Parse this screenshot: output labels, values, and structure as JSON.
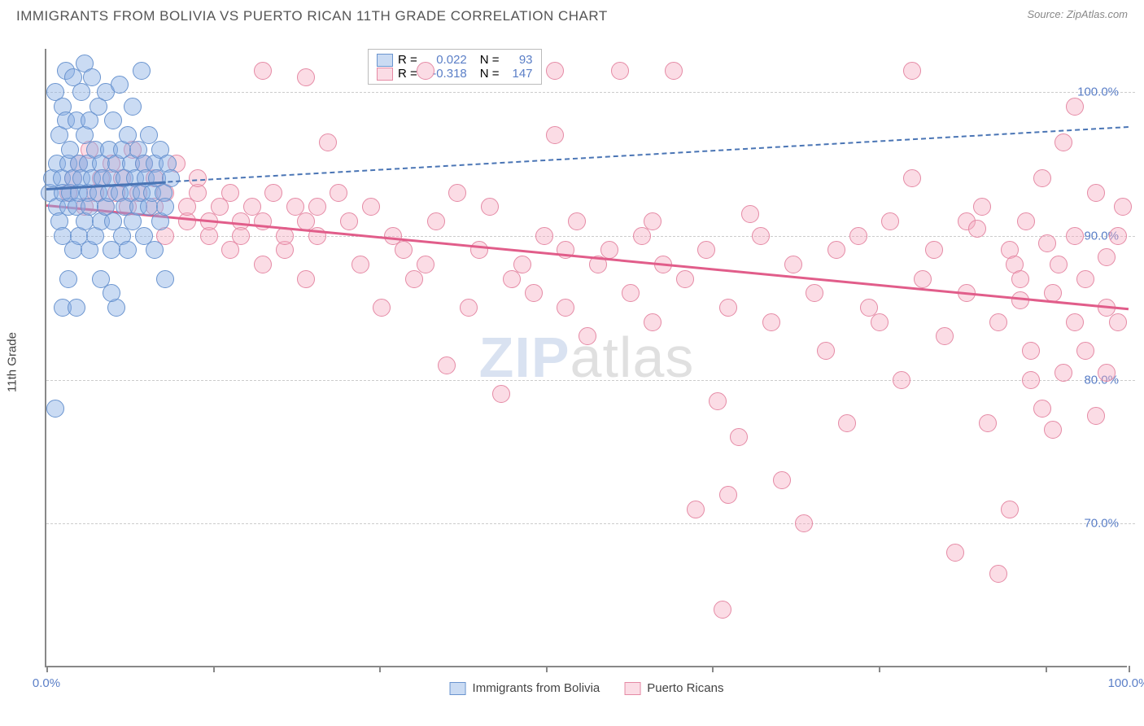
{
  "title": "IMMIGRANTS FROM BOLIVIA VS PUERTO RICAN 11TH GRADE CORRELATION CHART",
  "source": "Source: ZipAtlas.com",
  "ylabel": "11th Grade",
  "watermark_a": "ZIP",
  "watermark_b": "atlas",
  "chart": {
    "type": "scatter",
    "xlim": [
      0,
      100
    ],
    "ylim": [
      60,
      103
    ],
    "xticks": [
      0,
      15.38,
      30.77,
      46.15,
      61.54,
      76.92,
      92.31,
      100
    ],
    "xtick_labels": {
      "0": "0.0%",
      "100": "100.0%"
    },
    "yticks": [
      70,
      80,
      90,
      100
    ],
    "ytick_labels": [
      "70.0%",
      "80.0%",
      "90.0%",
      "100.0%"
    ],
    "grid_color": "#cccccc",
    "axis_color": "#888888",
    "background": "#ffffff"
  },
  "series": [
    {
      "name": "Immigrants from Bolivia",
      "legend_label": "Immigrants from Bolivia",
      "fill": "rgba(137,175,228,0.45)",
      "stroke": "#6a94cf",
      "marker_size": 22,
      "r_label": "R =",
      "r_value": "0.022",
      "n_label": "N =",
      "n_value": "93",
      "trend": {
        "x1": 0,
        "y1": 93.3,
        "x2": 100,
        "y2": 97.6,
        "solid_until_x": 11,
        "color": "#4a75b5"
      },
      "points": [
        [
          0.3,
          93
        ],
        [
          0.5,
          94
        ],
        [
          0.8,
          100
        ],
        [
          1.0,
          92
        ],
        [
          1.0,
          95
        ],
        [
          1.2,
          97
        ],
        [
          1.2,
          91
        ],
        [
          1.4,
          94
        ],
        [
          1.5,
          99
        ],
        [
          1.5,
          90
        ],
        [
          1.5,
          93
        ],
        [
          1.8,
          98
        ],
        [
          1.8,
          101.5
        ],
        [
          2.0,
          92
        ],
        [
          2.0,
          95
        ],
        [
          2.0,
          87
        ],
        [
          2.2,
          93
        ],
        [
          2.2,
          96
        ],
        [
          2.5,
          89
        ],
        [
          2.5,
          101
        ],
        [
          2.5,
          94
        ],
        [
          2.8,
          92
        ],
        [
          2.8,
          98
        ],
        [
          3.0,
          90
        ],
        [
          3.0,
          95
        ],
        [
          3.0,
          93
        ],
        [
          3.2,
          100
        ],
        [
          3.2,
          94
        ],
        [
          3.5,
          97
        ],
        [
          3.5,
          91
        ],
        [
          3.5,
          102
        ],
        [
          3.8,
          93
        ],
        [
          3.8,
          95
        ],
        [
          4.0,
          89
        ],
        [
          4.0,
          92
        ],
        [
          4.0,
          98
        ],
        [
          4.2,
          94
        ],
        [
          4.2,
          101
        ],
        [
          4.5,
          90
        ],
        [
          4.5,
          96
        ],
        [
          4.8,
          93
        ],
        [
          4.8,
          99
        ],
        [
          5.0,
          91
        ],
        [
          5.0,
          95
        ],
        [
          5.0,
          87
        ],
        [
          5.2,
          94
        ],
        [
          5.5,
          92
        ],
        [
          5.5,
          100
        ],
        [
          5.8,
          93
        ],
        [
          5.8,
          96
        ],
        [
          6.0,
          89
        ],
        [
          6.0,
          94
        ],
        [
          6.2,
          91
        ],
        [
          6.2,
          98
        ],
        [
          6.5,
          95
        ],
        [
          6.5,
          85
        ],
        [
          6.8,
          93
        ],
        [
          6.8,
          100.5
        ],
        [
          7.0,
          90
        ],
        [
          7.0,
          96
        ],
        [
          7.2,
          94
        ],
        [
          7.2,
          92
        ],
        [
          7.5,
          97
        ],
        [
          7.5,
          89
        ],
        [
          7.8,
          93
        ],
        [
          7.8,
          95
        ],
        [
          8.0,
          91
        ],
        [
          8.0,
          99
        ],
        [
          8.2,
          94
        ],
        [
          8.5,
          96
        ],
        [
          8.5,
          92
        ],
        [
          8.8,
          93
        ],
        [
          8.8,
          101.5
        ],
        [
          9.0,
          95
        ],
        [
          9.0,
          90
        ],
        [
          9.2,
          94
        ],
        [
          9.5,
          92
        ],
        [
          9.5,
          97
        ],
        [
          9.8,
          93
        ],
        [
          10.0,
          95
        ],
        [
          10.0,
          89
        ],
        [
          10.2,
          94
        ],
        [
          10.5,
          91
        ],
        [
          10.5,
          96
        ],
        [
          10.8,
          93
        ],
        [
          11.0,
          92
        ],
        [
          11.0,
          87
        ],
        [
          11.2,
          95
        ],
        [
          11.5,
          94
        ],
        [
          1.5,
          85
        ],
        [
          2.8,
          85
        ],
        [
          0.8,
          78
        ],
        [
          6.0,
          86
        ]
      ]
    },
    {
      "name": "Puerto Ricans",
      "legend_label": "Puerto Ricans",
      "fill": "rgba(244,168,190,0.40)",
      "stroke": "#e58aa5",
      "marker_size": 22,
      "r_label": "R =",
      "r_value": "-0.318",
      "n_label": "N =",
      "n_value": "147",
      "trend": {
        "x1": 0,
        "y1": 92.2,
        "x2": 100,
        "y2": 85.0,
        "solid_until_x": 100,
        "color": "#e15d8a"
      },
      "points": [
        [
          2,
          93
        ],
        [
          2.5,
          94
        ],
        [
          3,
          95
        ],
        [
          3.5,
          92
        ],
        [
          4,
          96
        ],
        [
          4.5,
          93
        ],
        [
          5,
          94
        ],
        [
          5.5,
          92
        ],
        [
          6,
          95
        ],
        [
          6.5,
          93
        ],
        [
          7,
          94
        ],
        [
          7.5,
          92
        ],
        [
          8,
          96
        ],
        [
          8.5,
          93
        ],
        [
          9,
          95
        ],
        [
          10,
          92
        ],
        [
          10,
          94
        ],
        [
          11,
          93
        ],
        [
          11,
          90
        ],
        [
          12,
          95
        ],
        [
          13,
          91
        ],
        [
          13,
          92
        ],
        [
          14,
          93
        ],
        [
          15,
          90
        ],
        [
          15,
          91
        ],
        [
          16,
          92
        ],
        [
          17,
          89
        ],
        [
          17,
          93
        ],
        [
          18,
          91
        ],
        [
          18,
          90
        ],
        [
          19,
          92
        ],
        [
          20,
          88
        ],
        [
          20,
          91
        ],
        [
          21,
          93
        ],
        [
          22,
          89
        ],
        [
          22,
          90
        ],
        [
          23,
          92
        ],
        [
          24,
          87
        ],
        [
          24,
          91
        ],
        [
          25,
          90
        ],
        [
          26,
          96.5
        ],
        [
          27,
          93
        ],
        [
          28,
          91
        ],
        [
          29,
          88
        ],
        [
          30,
          92
        ],
        [
          31,
          85
        ],
        [
          32,
          90
        ],
        [
          33,
          89
        ],
        [
          34,
          87
        ],
        [
          35,
          101.5
        ],
        [
          36,
          91
        ],
        [
          37,
          81
        ],
        [
          38,
          93
        ],
        [
          39,
          85
        ],
        [
          40,
          89
        ],
        [
          41,
          92
        ],
        [
          42,
          79
        ],
        [
          43,
          87
        ],
        [
          44,
          88
        ],
        [
          45,
          86
        ],
        [
          46,
          90
        ],
        [
          47,
          101.5
        ],
        [
          47,
          97
        ],
        [
          48,
          85
        ],
        [
          49,
          91
        ],
        [
          50,
          83
        ],
        [
          51,
          88
        ],
        [
          52,
          89
        ],
        [
          53,
          101.5
        ],
        [
          54,
          86
        ],
        [
          55,
          90
        ],
        [
          56,
          84
        ],
        [
          57,
          88
        ],
        [
          58,
          101.5
        ],
        [
          59,
          87
        ],
        [
          60,
          71
        ],
        [
          61,
          89
        ],
        [
          62,
          78.5
        ],
        [
          62.5,
          64
        ],
        [
          63,
          85
        ],
        [
          64,
          76
        ],
        [
          65,
          91.5
        ],
        [
          66,
          90
        ],
        [
          67,
          84
        ],
        [
          68,
          73
        ],
        [
          69,
          88
        ],
        [
          70,
          70
        ],
        [
          71,
          86
        ],
        [
          72,
          82
        ],
        [
          73,
          89
        ],
        [
          74,
          77
        ],
        [
          75,
          90
        ],
        [
          76,
          85
        ],
        [
          77,
          84
        ],
        [
          78,
          91
        ],
        [
          79,
          80
        ],
        [
          80,
          101.5
        ],
        [
          80,
          94
        ],
        [
          81,
          87
        ],
        [
          82,
          89
        ],
        [
          83,
          83
        ],
        [
          84,
          68
        ],
        [
          85,
          91
        ],
        [
          85,
          86
        ],
        [
          86,
          90.5
        ],
        [
          86.5,
          92
        ],
        [
          87,
          77
        ],
        [
          88,
          84
        ],
        [
          88,
          66.5
        ],
        [
          89,
          89
        ],
        [
          89.5,
          88
        ],
        [
          89,
          71
        ],
        [
          90,
          87
        ],
        [
          90,
          85.5
        ],
        [
          90.5,
          91
        ],
        [
          91,
          80
        ],
        [
          91,
          82
        ],
        [
          92,
          78
        ],
        [
          92,
          94
        ],
        [
          92.5,
          89.5
        ],
        [
          93,
          86
        ],
        [
          93,
          76.5
        ],
        [
          93.5,
          88
        ],
        [
          94,
          80.5
        ],
        [
          94,
          96.5
        ],
        [
          95,
          84
        ],
        [
          95,
          90
        ],
        [
          95,
          99
        ],
        [
          96,
          87
        ],
        [
          96,
          82
        ],
        [
          97,
          93
        ],
        [
          97,
          77.5
        ],
        [
          98,
          88.5
        ],
        [
          98,
          85
        ],
        [
          98,
          80.5
        ],
        [
          99,
          90
        ],
        [
          99,
          84
        ],
        [
          99.5,
          92
        ],
        [
          20,
          101.5
        ],
        [
          24,
          101
        ],
        [
          14,
          94
        ],
        [
          25,
          92
        ],
        [
          35,
          88
        ],
        [
          48,
          89
        ],
        [
          56,
          91
        ],
        [
          63,
          72
        ]
      ]
    }
  ]
}
